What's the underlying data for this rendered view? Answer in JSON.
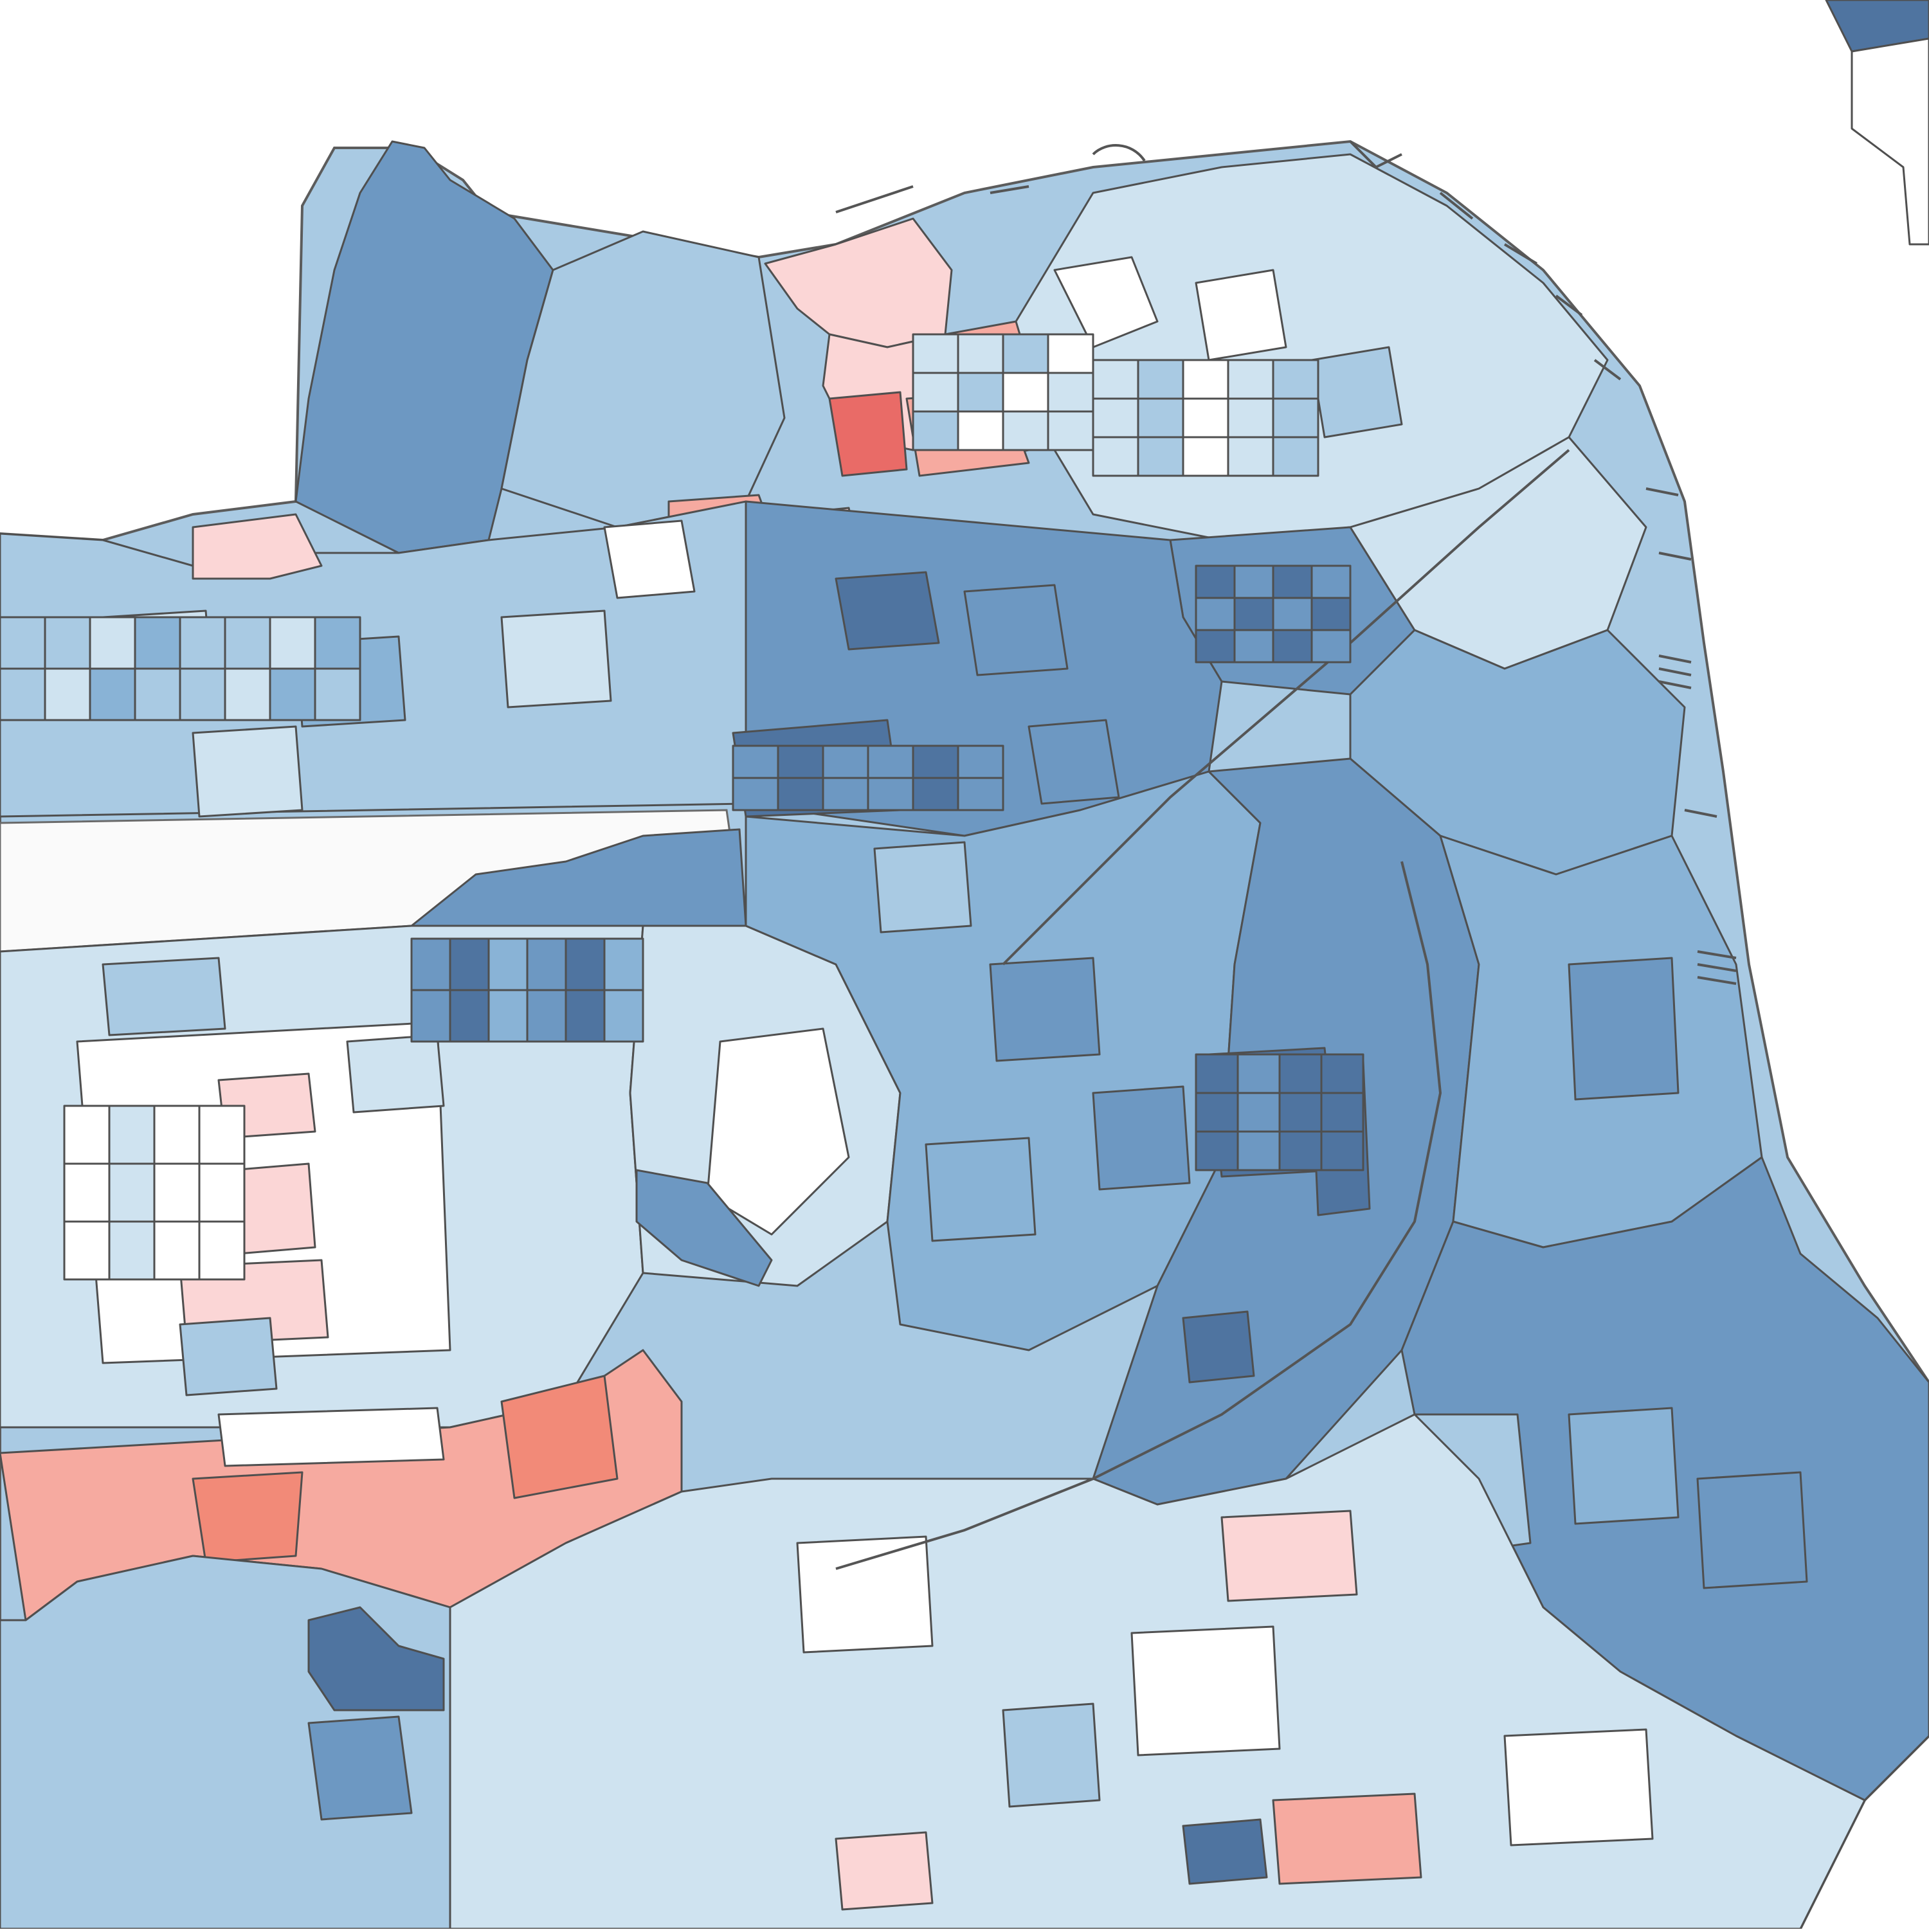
{
  "map": {
    "palette": {
      "background": "#ffffff",
      "park": "#fafafa",
      "border": "#4f4f4f",
      "blue_1": "#cfe3f0",
      "blue_2": "#a9cae3",
      "blue_3": "#89b3d6",
      "blue_4": "#6d98c2",
      "blue_5": "#4f74a0",
      "red_1": "#fbd6d6",
      "red_2": "#f6aaa0",
      "red_3": "#f28a78",
      "red_4": "#e96b67"
    }
  }
}
